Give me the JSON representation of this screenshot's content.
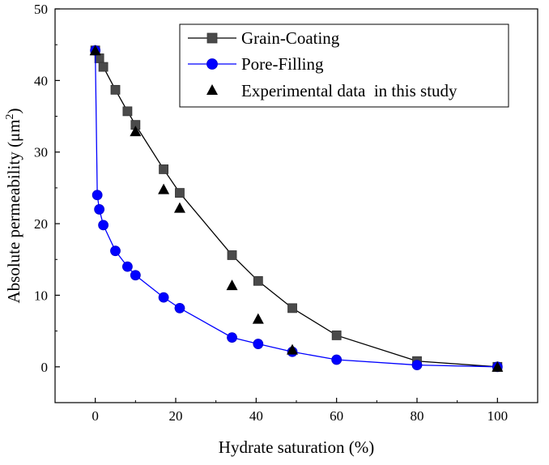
{
  "chart_data": {
    "type": "line",
    "title": "",
    "xlabel": "Hydrate saturation (%)",
    "ylabel": "Absolute permeability (μm",
    "ylabel_superscript": "2",
    "ylabel_close": ")",
    "xlim": [
      -10,
      110
    ],
    "ylim": [
      -5,
      50
    ],
    "xticks": [
      0,
      20,
      40,
      60,
      80,
      100
    ],
    "yticks": [
      0,
      10,
      20,
      30,
      40,
      50
    ],
    "grid": false,
    "legend_position": "top-right",
    "series": [
      {
        "name": "Grain-Coating",
        "marker": "square",
        "color": "#4a4a4a",
        "line_color": "#000000",
        "x": [
          0,
          1,
          2,
          5,
          8,
          10,
          17,
          21,
          34,
          40.5,
          49,
          60,
          80,
          100
        ],
        "y": [
          44.2,
          43.1,
          41.9,
          38.7,
          35.7,
          33.8,
          27.6,
          24.3,
          15.6,
          12.0,
          8.2,
          4.4,
          0.8,
          0.0
        ]
      },
      {
        "name": "Pore-Filling",
        "marker": "circle",
        "color": "#0000ff",
        "line_color": "#0000ff",
        "x": [
          0,
          0.5,
          1,
          2,
          5,
          8,
          10,
          17,
          21,
          34,
          40.5,
          49,
          60,
          80,
          100
        ],
        "y": [
          44.2,
          24.0,
          22.0,
          19.8,
          16.2,
          14.0,
          12.8,
          9.7,
          8.2,
          4.1,
          3.2,
          2.1,
          1.0,
          0.25,
          0.0
        ]
      },
      {
        "name": "Experimental data  in this study",
        "marker": "triangle",
        "color": "#000000",
        "line_color": null,
        "x": [
          0,
          10,
          17,
          21,
          34,
          40.5,
          49,
          100
        ],
        "y": [
          44.2,
          32.9,
          24.8,
          22.2,
          11.4,
          6.7,
          2.4,
          0.0
        ]
      }
    ]
  }
}
